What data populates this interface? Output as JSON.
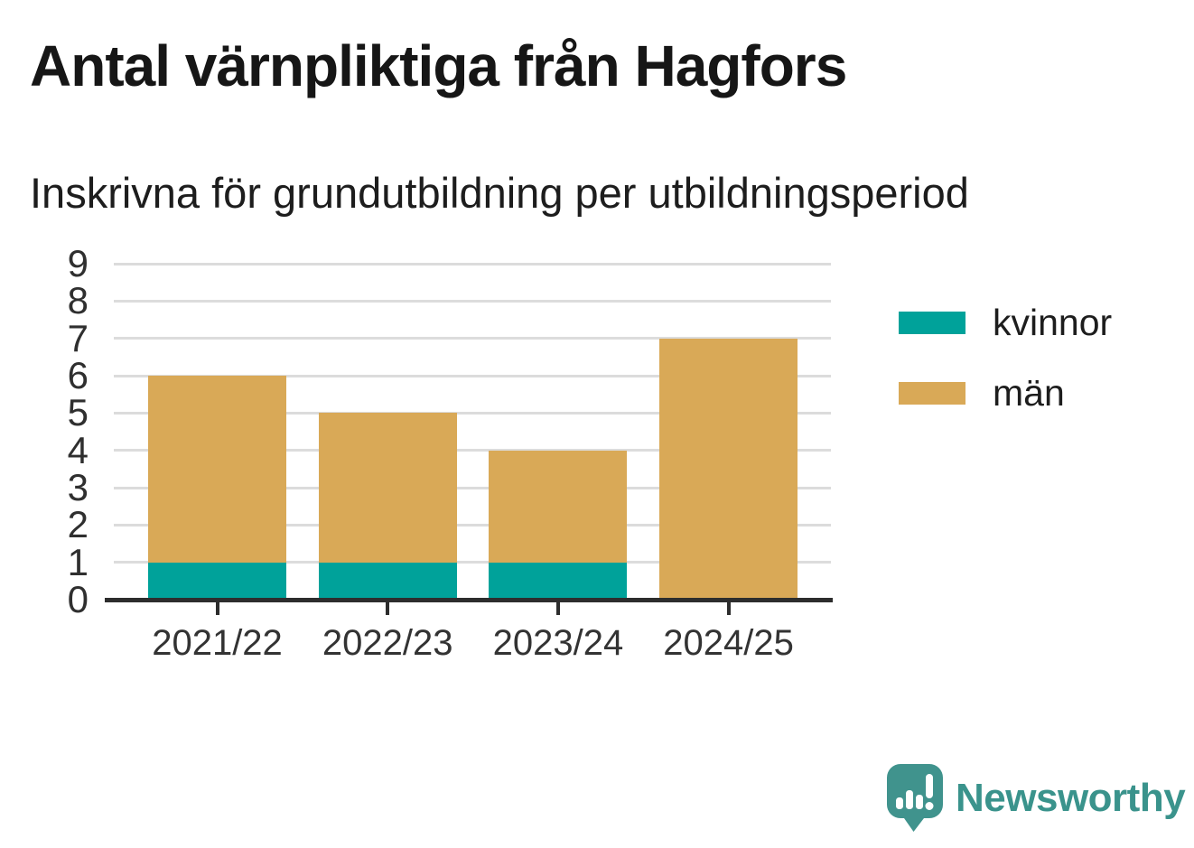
{
  "title": "Antal värnpliktiga från Hagfors",
  "subtitle": "Inskrivna för grundutbildning per utbildningsperiod",
  "chart_data": {
    "type": "bar",
    "stacked": true,
    "title": "Antal värnpliktiga från Hagfors",
    "subtitle": "Inskrivna för grundutbildning per utbildningsperiod",
    "categories": [
      "2021/22",
      "2022/23",
      "2023/24",
      "2024/25"
    ],
    "series": [
      {
        "name": "kvinnor",
        "color": "#00A29A",
        "values": [
          1,
          1,
          1,
          0
        ]
      },
      {
        "name": "män",
        "color": "#D9A957",
        "values": [
          5,
          4,
          3,
          7
        ]
      }
    ],
    "totals": [
      6,
      5,
      4,
      7
    ],
    "xlabel": "",
    "ylabel": "",
    "ylim": [
      0,
      9
    ],
    "yticks": [
      0,
      1,
      2,
      3,
      4,
      5,
      6,
      7,
      8,
      9
    ],
    "grid": true,
    "legend_position": "right-of-plot"
  },
  "branding": {
    "logo_text": "Newsworthy",
    "logo_color": "#3A938C"
  },
  "colors": {
    "background": "#FFFFFF",
    "kvinnor": "#00A29A",
    "man": "#D9A957",
    "gridline": "#DCDCDC",
    "axis": "#2D2D2D",
    "title_text": "#161616",
    "label_text": "#333333"
  }
}
